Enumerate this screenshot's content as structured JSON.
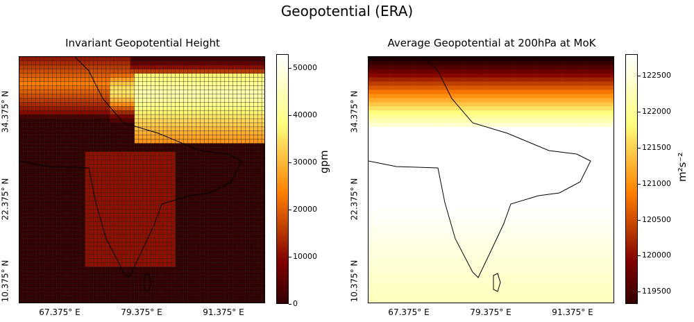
{
  "suptitle": "Geopotential (ERA)",
  "chart_data": [
    {
      "type": "heatmap",
      "title": "Invariant Geopotential Height",
      "xticks": [
        "67.375° E",
        "79.375° E",
        "91.375° E"
      ],
      "yticks": [
        "34.375° N",
        "22.375° N",
        "10.375° N"
      ],
      "colorbar": {
        "label": "gpm",
        "ticks": [
          "0",
          "10000",
          "20000",
          "30000",
          "40000",
          "50000"
        ],
        "tick_values": [
          0,
          10000,
          20000,
          30000,
          40000,
          50000
        ],
        "range": [
          0,
          53000
        ],
        "colormap": "afmhot"
      },
      "xlim": [
        62.0,
        96.5
      ],
      "ylim": [
        6.5,
        41.0
      ],
      "grid_lines": true
    },
    {
      "type": "heatmap",
      "title": "Average Geopotential at 200hPa at MoK",
      "xticks": [
        "67.375° E",
        "79.375° E",
        "91.375° E"
      ],
      "yticks": [
        "34.375° N",
        "22.375° N",
        "10.375° N"
      ],
      "colorbar": {
        "label": "m²s⁻²",
        "ticks": [
          "119500",
          "120000",
          "120500",
          "121000",
          "121500",
          "122000",
          "122500"
        ],
        "tick_values": [
          119500,
          120000,
          120500,
          121000,
          121500,
          122000,
          122500
        ],
        "range": [
          119330,
          122800
        ],
        "colormap": "afmhot"
      },
      "xlim": [
        62.0,
        96.5
      ],
      "ylim": [
        6.5,
        41.0
      ],
      "grid_lines": false
    }
  ]
}
